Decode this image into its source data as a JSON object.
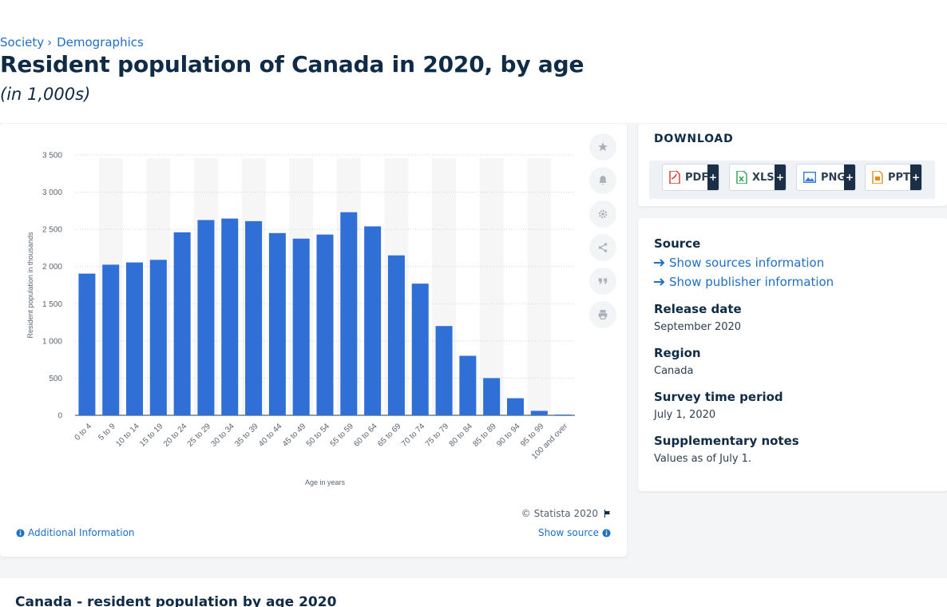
{
  "breadcrumb": {
    "items": [
      "Society",
      "Demographics"
    ],
    "separator": "›"
  },
  "page": {
    "title": "Resident population of Canada in 2020, by age",
    "subtitle": "(in 1,000s)"
  },
  "chart_card": {
    "copyright": "© Statista 2020",
    "additional_info": "Additional Information",
    "show_source": "Show source"
  },
  "tools": [
    "star-icon",
    "bell-icon",
    "gear-icon",
    "share-icon",
    "quote-icon",
    "print-icon"
  ],
  "download": {
    "title": "DOWNLOAD",
    "buttons": [
      {
        "label": "PDF",
        "plus": "+",
        "icon_color": "#d9342b"
      },
      {
        "label": "XLS",
        "plus": "+",
        "icon_color": "#2e9e4f"
      },
      {
        "label": "PNG",
        "plus": "+",
        "icon_color": "#3a7bd5"
      },
      {
        "label": "PPT",
        "plus": "+",
        "icon_color": "#e8891f"
      }
    ]
  },
  "meta": {
    "source_label": "Source",
    "show_sources": "Show sources information",
    "show_publisher": "Show publisher information",
    "release_date_label": "Release date",
    "release_date": "September 2020",
    "region_label": "Region",
    "region": "Canada",
    "survey_label": "Survey time period",
    "survey": "July 1, 2020",
    "notes_label": "Supplementary notes",
    "notes": "Values as of July 1."
  },
  "bottom": {
    "title": "Canada - resident population by age 2020"
  },
  "chart_data": {
    "type": "bar",
    "categories": [
      "0 to 4",
      "5 to 9",
      "10 to 14",
      "15 to 19",
      "20 to 24",
      "25 to 29",
      "30 to 34",
      "35 to 39",
      "40 to 44",
      "45 to 49",
      "50 to 54",
      "55 to 59",
      "60 to 64",
      "65 to 69",
      "70 to 74",
      "75 to 79",
      "80 to 84",
      "85 to 89",
      "90 to 94",
      "95 to 99",
      "100 and over"
    ],
    "values": [
      1905,
      2025,
      2055,
      2090,
      2460,
      2625,
      2645,
      2610,
      2450,
      2375,
      2430,
      2730,
      2540,
      2150,
      1770,
      1200,
      800,
      500,
      230,
      60,
      10
    ],
    "xlabel": "Age in years",
    "ylabel": "Resident population in thousands",
    "ylim": [
      0,
      3500
    ],
    "yticks": [
      0,
      500,
      1000,
      1500,
      2000,
      2500,
      3000,
      3500
    ],
    "ytick_labels": [
      "0",
      "500",
      "1 000",
      "1 500",
      "2 000",
      "2 500",
      "3 000",
      "3 500"
    ],
    "grid": true,
    "bar_color": "#2f6fd6"
  }
}
